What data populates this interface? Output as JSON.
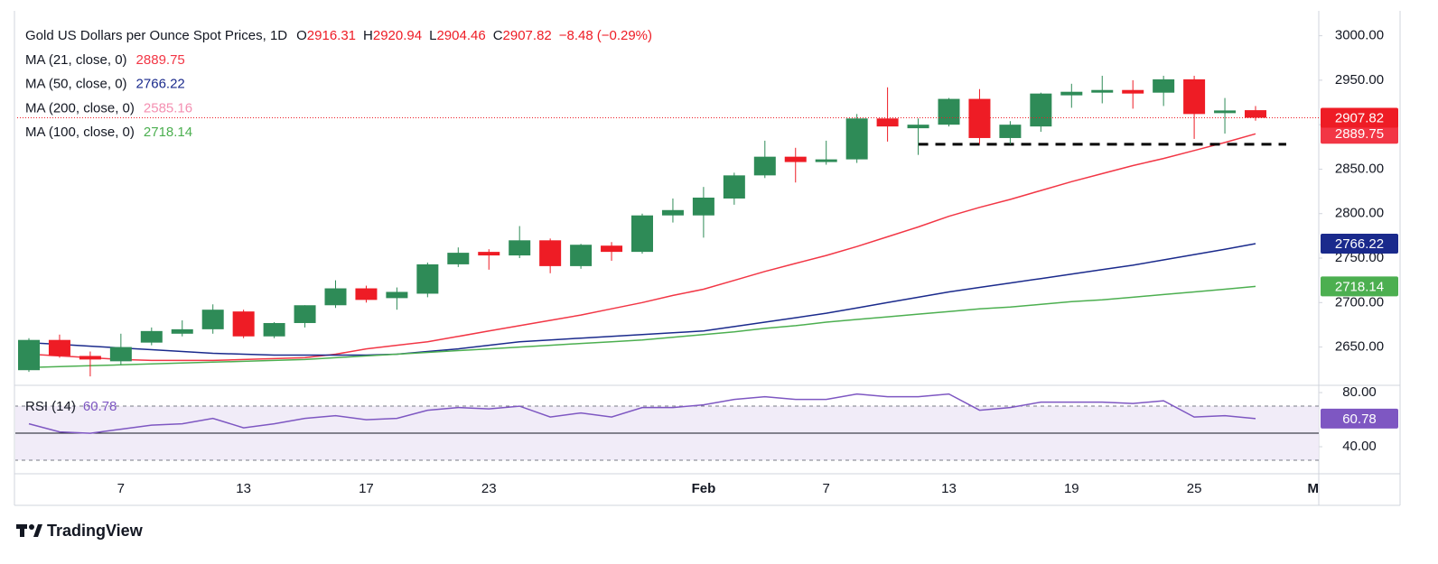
{
  "chart_data": [
    {
      "type": "candlestick",
      "title": "Gold US Dollars per Ounce Spot Prices, 1D",
      "ohlc_labels": [
        "O",
        "H",
        "L",
        "C"
      ],
      "change": {
        "value": -8.48,
        "label": "−8.48"
      },
      "change_pct": {
        "value": -0.29,
        "label": "(−0.29%)"
      },
      "categories": [
        null,
        null,
        null,
        "7",
        null,
        null,
        null,
        "13",
        null,
        null,
        null,
        "17",
        null,
        null,
        null,
        "23",
        null,
        null,
        null,
        null,
        null,
        null,
        "Feb",
        null,
        null,
        null,
        "7",
        null,
        null,
        null,
        "13",
        null,
        null,
        null,
        "19",
        null,
        null,
        null,
        "25",
        null,
        null,
        null,
        "Ma"
      ],
      "open": [
        2624,
        2658,
        2640,
        2634,
        2655,
        2665,
        2670,
        2690,
        2662,
        2677,
        2697,
        2716,
        2705,
        2710,
        2743,
        2757,
        2753,
        2770,
        2741,
        2764,
        2757,
        2798,
        2798,
        2817,
        2843,
        2864,
        2858,
        2861,
        2907,
        2896,
        2900,
        2929,
        2885,
        2898,
        2933,
        2936,
        2939,
        2936,
        2951,
        2913,
        2916.31,
        null,
        null
      ],
      "high": [
        2660,
        2664,
        2645,
        2665,
        2672,
        2680,
        2698,
        2692,
        2678,
        2697,
        2725,
        2719,
        2717,
        2745,
        2762,
        2760,
        2786,
        2772,
        2766,
        2768,
        2800,
        2817,
        2830,
        2846,
        2882,
        2874,
        2882,
        2912,
        2942,
        2907,
        2930,
        2940,
        2904,
        2936,
        2946,
        2955,
        2950,
        2955,
        2955,
        2930,
        2920.94,
        null,
        null
      ],
      "low": [
        2622,
        2638,
        2617,
        2630,
        2652,
        2662,
        2665,
        2660,
        2660,
        2672,
        2694,
        2700,
        2692,
        2706,
        2740,
        2737,
        2750,
        2733,
        2738,
        2747,
        2755,
        2790,
        2773,
        2810,
        2840,
        2835,
        2855,
        2857,
        2881,
        2866,
        2898,
        2878,
        2878,
        2892,
        2919,
        2924,
        2918,
        2921,
        2884,
        2890,
        2904.46,
        null,
        null
      ],
      "close": [
        2658,
        2640,
        2636,
        2650,
        2668,
        2670,
        2692,
        2662,
        2677,
        2697,
        2716,
        2703,
        2712,
        2743,
        2756,
        2753,
        2770,
        2741,
        2765,
        2757,
        2798,
        2804,
        2818,
        2843,
        2864,
        2858,
        2861,
        2907,
        2898,
        2900,
        2929,
        2885,
        2900,
        2935,
        2937,
        2939,
        2935,
        2951,
        2912,
        2916,
        2907.82,
        null,
        null
      ],
      "up_color": "#2e8b57",
      "down_color": "#ee1c25",
      "ylim": [
        2609,
        3028
      ],
      "yticks": [
        {
          "value": 2650,
          "label": "2650.00"
        },
        {
          "value": 2700,
          "label": "2700.00"
        },
        {
          "value": 2750,
          "label": "2750.00"
        },
        {
          "value": 2800,
          "label": "2800.00"
        },
        {
          "value": 2850,
          "label": "2850.00"
        },
        {
          "value": 2900,
          "label": "2900.00"
        },
        {
          "value": 2950,
          "label": "2950.00"
        },
        {
          "value": 3000,
          "label": "3000.00"
        }
      ],
      "grid": false,
      "series": [
        {
          "name": "MA (21, close, 0)",
          "color": "#f23645",
          "values": [
            2642,
            2640,
            2638,
            2636,
            2635,
            2635,
            2635,
            2636,
            2637,
            2638,
            2642,
            2648,
            2652,
            2656,
            2662,
            2668,
            2674,
            2680,
            2686,
            2693,
            2700,
            2708,
            2715,
            2725,
            2735,
            2744,
            2753,
            2763,
            2774,
            2785,
            2797,
            2807,
            2816,
            2826,
            2836,
            2845,
            2854,
            2862,
            2871,
            2880,
            2889.75,
            null,
            null
          ]
        },
        {
          "name": "MA (50, close, 0)",
          "color": "#1a2a8c",
          "values": [
            2655,
            2653,
            2651,
            2649,
            2647,
            2645,
            2643,
            2642,
            2641,
            2641,
            2641,
            2641,
            2642,
            2645,
            2648,
            2652,
            2656,
            2658,
            2660,
            2662,
            2664,
            2666,
            2668,
            2673,
            2678,
            2683,
            2688,
            2694,
            2700,
            2706,
            2712,
            2717,
            2722,
            2727,
            2732,
            2737,
            2742,
            2748,
            2754,
            2760,
            2766.22,
            null,
            null
          ]
        },
        {
          "name": "MA (200, close, 0)",
          "color": "#f48fb1",
          "last": 2585.16
        },
        {
          "name": "MA (100, close, 0)",
          "color": "#4caf50",
          "values": [
            2627,
            2628,
            2629,
            2630,
            2631,
            2632,
            2633,
            2634,
            2635,
            2636,
            2638,
            2640,
            2642,
            2644,
            2646,
            2648,
            2650,
            2652,
            2654,
            2656,
            2658,
            2661,
            2664,
            2667,
            2671,
            2674,
            2678,
            2681,
            2684,
            2687,
            2690,
            2693,
            2695,
            2698,
            2701,
            2703,
            2706,
            2709,
            2712,
            2715,
            2718.14,
            null,
            null
          ]
        }
      ],
      "support_line": {
        "value": 2878,
        "start_index": 29,
        "end_index": 41,
        "color": "#000000"
      },
      "last_price_line": true
    },
    {
      "type": "line",
      "name": "RSI (14)",
      "color": "#7e57c2",
      "values": [
        57,
        51,
        50,
        53,
        56,
        57,
        61,
        54,
        57,
        61,
        63,
        60,
        61,
        67,
        69,
        68,
        70,
        62,
        65,
        62,
        69,
        69,
        71,
        75,
        77,
        75,
        75,
        79,
        77,
        77,
        79,
        67,
        69,
        73,
        73,
        73,
        72,
        74,
        62,
        63,
        60.78,
        null,
        null
      ],
      "ylim": [
        20.7,
        84.7
      ],
      "yticks": [
        {
          "value": 40,
          "label": "40.00"
        },
        {
          "value": 80,
          "label": "80.00"
        }
      ],
      "levels": [
        70,
        50,
        30
      ],
      "level_styles": [
        "dashed",
        "solid",
        "dashed"
      ],
      "band_color": "#ede7f6"
    }
  ],
  "branding": "TradingView"
}
